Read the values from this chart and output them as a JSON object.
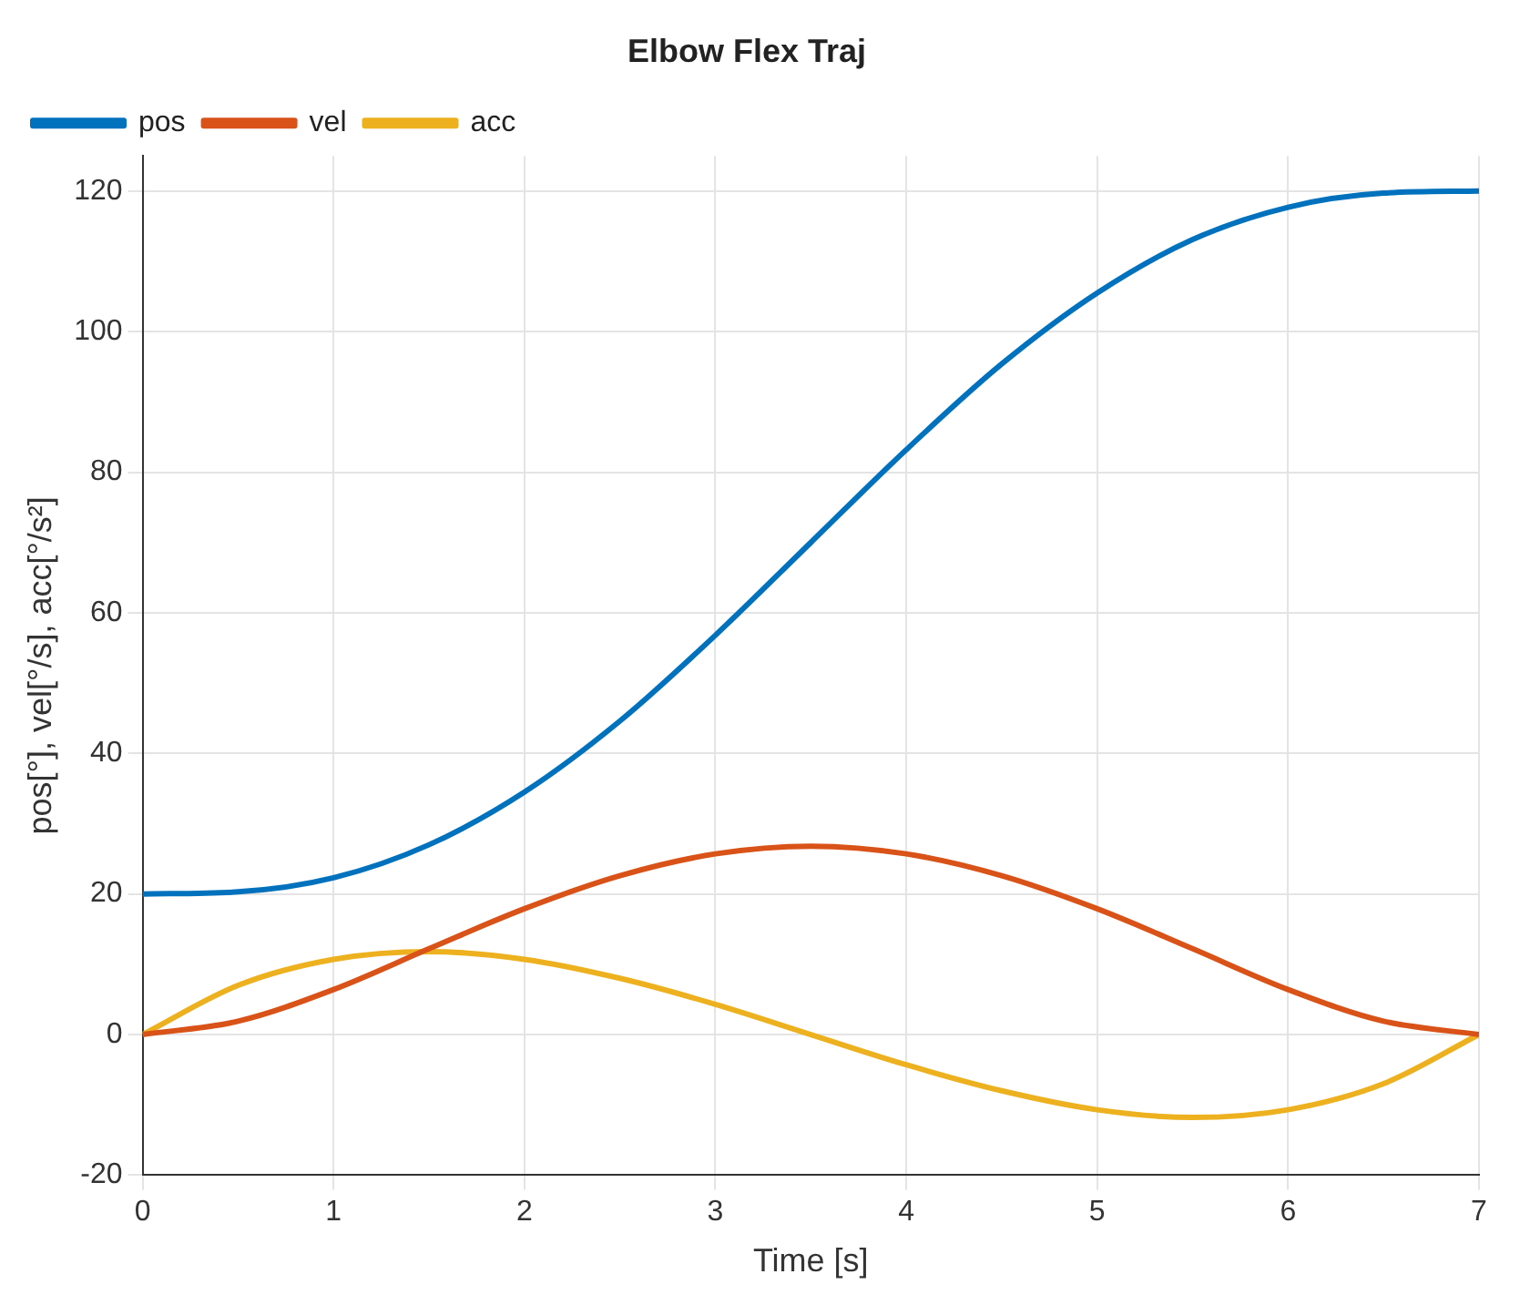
{
  "chart_data": {
    "type": "line",
    "title": "Elbow Flex Traj",
    "xlabel": "Time [s]",
    "ylabel": "pos[°], vel[°/s], acc[°/s²]",
    "x": [
      0,
      0.5,
      1,
      1.5,
      2,
      2.5,
      3,
      3.5,
      4,
      4.5,
      5,
      5.5,
      6,
      6.5,
      7
    ],
    "series": [
      {
        "name": "pos",
        "color": "#0072bd",
        "values": [
          20,
          20.3,
          22.3,
          27.0,
          34.5,
          44.6,
          56.8,
          70,
          83.2,
          95.4,
          105.5,
          113.1,
          117.7,
          119.7,
          120
        ]
      },
      {
        "name": "vel",
        "color": "#d95319",
        "values": [
          0,
          1.9,
          6.4,
          12.2,
          17.9,
          22.6,
          25.7,
          26.8,
          25.7,
          22.6,
          17.9,
          12.2,
          6.4,
          1.9,
          0
        ]
      },
      {
        "name": "acc",
        "color": "#edb120",
        "values": [
          0,
          7.0,
          10.7,
          11.8,
          10.7,
          8.0,
          4.3,
          0,
          -4.3,
          -8.0,
          -10.7,
          -11.8,
          -10.7,
          -7.0,
          0
        ]
      }
    ],
    "xlim": [
      0,
      7
    ],
    "xticks": [
      0,
      1,
      2,
      3,
      4,
      5,
      6,
      7
    ],
    "ylim": [
      -20,
      125
    ],
    "yticks": [
      -20,
      0,
      20,
      40,
      60,
      80,
      100,
      120
    ],
    "grid": true,
    "legend": "top left",
    "marker": "none",
    "line_style": "solid"
  }
}
